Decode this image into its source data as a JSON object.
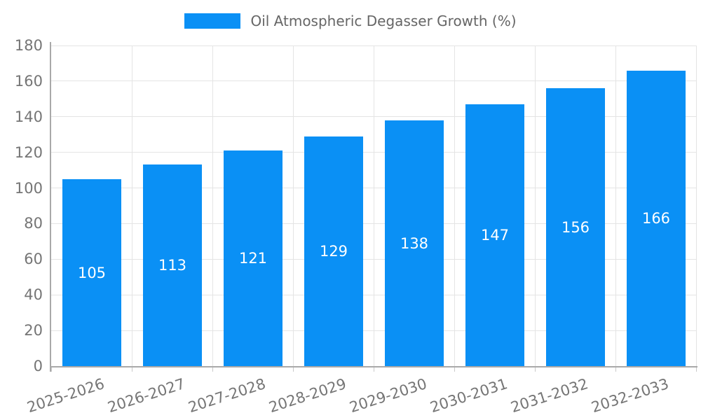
{
  "legend": {
    "label": "Oil Atmospheric Degasser Growth (%)"
  },
  "chart_data": {
    "type": "bar",
    "title": "Oil Atmospheric Degasser Growth (%)",
    "categories": [
      "2025-2026",
      "2026-2027",
      "2027-2028",
      "2028-2029",
      "2029-2030",
      "2030-2031",
      "2031-2032",
      "2032-2033"
    ],
    "series": [
      {
        "name": "Oil Atmospheric Degasser Growth (%)",
        "values": [
          105,
          113,
          121,
          129,
          138,
          147,
          156,
          166
        ]
      }
    ],
    "xlabel": "",
    "ylabel": "",
    "ylim": [
      0,
      180
    ],
    "yticks": [
      0,
      20,
      40,
      60,
      80,
      100,
      120,
      140,
      160,
      180
    ],
    "grid": true,
    "legend_position": "top-center",
    "data_labels": "inside-center",
    "colors": {
      "bar": "#0a90f5",
      "grid": "#e4e4e4",
      "axis": "#a9a9a9",
      "tick": "#c9c9c9",
      "axis_label": "#757575",
      "legend_text": "#666666",
      "value_label": "#ffffff",
      "background": "#ffffff"
    }
  }
}
